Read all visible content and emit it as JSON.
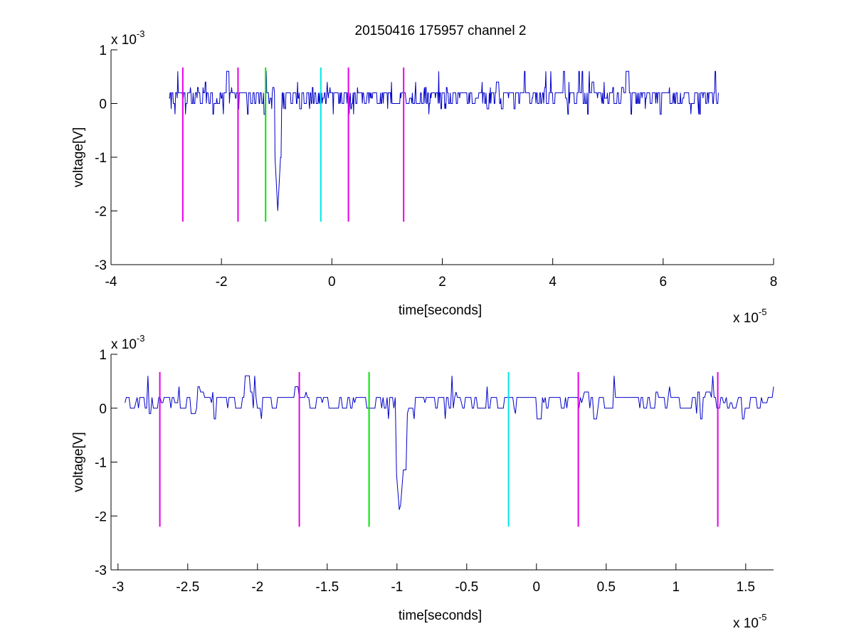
{
  "figure_title": "20150416 175957 channel 2",
  "chart_data": [
    {
      "type": "line",
      "xlabel": "time[seconds]",
      "ylabel": "voltage[V]",
      "x_exponent_label": "x 10",
      "x_exponent_power": "-5",
      "y_exponent_label": "x 10",
      "y_exponent_power": "-3",
      "xlim": [
        -4,
        8
      ],
      "ylim": [
        -3,
        1
      ],
      "xticks": [
        -4,
        -2,
        0,
        2,
        4,
        6,
        8
      ],
      "xtick_labels": [
        "-4",
        "-2",
        "0",
        "2",
        "4",
        "6",
        "8"
      ],
      "yticks": [
        -3,
        -2,
        -1,
        0,
        1
      ],
      "ytick_labels": [
        "-3",
        "-2",
        "-1",
        "0",
        "1"
      ],
      "signal": {
        "color": "#0000c8",
        "x_range": [
          -2.95,
          7.0
        ],
        "baseline": 0.1,
        "dip": {
          "x": -0.98,
          "y": -2.0
        }
      },
      "markers": [
        {
          "x": -2.7,
          "color": "#e600e6",
          "y_range": [
            -2.2,
            0.67
          ]
        },
        {
          "x": -1.7,
          "color": "#e600e6",
          "y_range": [
            -2.2,
            0.67
          ]
        },
        {
          "x": -1.2,
          "color": "#00e600",
          "y_range": [
            -2.2,
            0.67
          ]
        },
        {
          "x": -0.2,
          "color": "#00e6e6",
          "y_range": [
            -2.2,
            0.67
          ]
        },
        {
          "x": 0.3,
          "color": "#e600e6",
          "y_range": [
            -2.2,
            0.67
          ]
        },
        {
          "x": 1.3,
          "color": "#e600e6",
          "y_range": [
            -2.2,
            0.67
          ]
        }
      ]
    },
    {
      "type": "line",
      "xlabel": "time[seconds]",
      "ylabel": "voltage[V]",
      "x_exponent_label": "x 10",
      "x_exponent_power": "-5",
      "y_exponent_label": "x 10",
      "y_exponent_power": "-3",
      "xlim": [
        -3.05,
        1.7
      ],
      "ylim": [
        -3,
        1
      ],
      "xticks": [
        -3,
        -2.5,
        -2,
        -1.5,
        -1,
        -0.5,
        0,
        0.5,
        1,
        1.5
      ],
      "xtick_labels": [
        "-3",
        "-2.5",
        "-2",
        "-1.5",
        "-1",
        "-0.5",
        "0",
        "0.5",
        "1",
        "1.5"
      ],
      "yticks": [
        -3,
        -2,
        -1,
        0,
        1
      ],
      "ytick_labels": [
        "-3",
        "-2",
        "-1",
        "0",
        "1"
      ],
      "signal": {
        "color": "#0000c8",
        "x_range": [
          -2.95,
          1.7
        ],
        "baseline": 0.1,
        "dip": {
          "x": -0.98,
          "y": -2.0
        }
      },
      "markers": [
        {
          "x": -2.7,
          "color": "#e600e6",
          "y_range": [
            -2.2,
            0.67
          ]
        },
        {
          "x": -1.7,
          "color": "#e600e6",
          "y_range": [
            -2.2,
            0.67
          ]
        },
        {
          "x": -1.2,
          "color": "#00e600",
          "y_range": [
            -2.2,
            0.67
          ]
        },
        {
          "x": -0.2,
          "color": "#00e6e6",
          "y_range": [
            -2.2,
            0.67
          ]
        },
        {
          "x": 0.3,
          "color": "#e600e6",
          "y_range": [
            -2.2,
            0.67
          ]
        },
        {
          "x": 1.3,
          "color": "#e600e6",
          "y_range": [
            -2.2,
            0.67
          ]
        }
      ]
    }
  ]
}
